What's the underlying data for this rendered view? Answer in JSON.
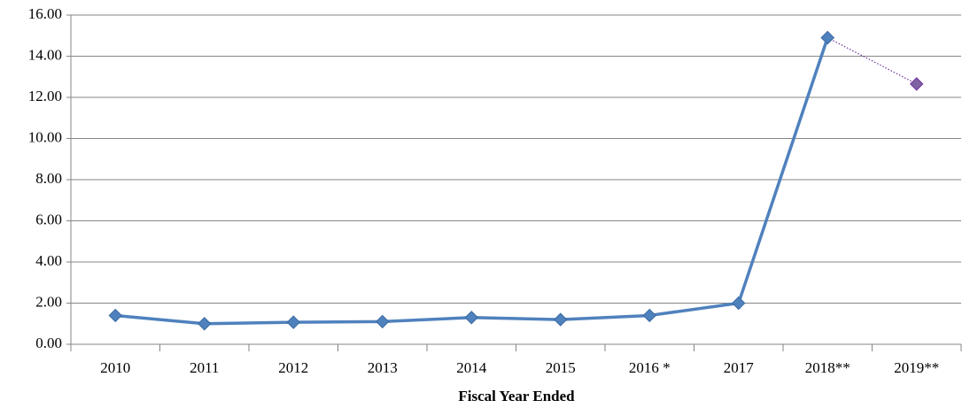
{
  "chart_data": {
    "type": "line",
    "xlabel": "Fiscal Year Ended",
    "categories": [
      "2010",
      "2011",
      "2012",
      "2013",
      "2014",
      "2015",
      "2016 *",
      "2017",
      "2018**",
      "2019**"
    ],
    "series": [
      {
        "color": "#4f81bd",
        "marker_color": "#4f81bd",
        "marker_edge": "#3a6aa3",
        "line_style": "solid",
        "values": [
          1.4,
          1.0,
          1.07,
          1.1,
          1.3,
          1.2,
          1.4,
          2.0,
          14.9,
          null
        ]
      },
      {
        "color": "#7030a0",
        "marker_color": "#8064a2",
        "marker_edge": "#7030a0",
        "line_style": "dotted",
        "values": [
          null,
          null,
          null,
          null,
          null,
          null,
          null,
          null,
          14.9,
          12.65
        ]
      }
    ],
    "ylim": [
      0,
      16
    ],
    "yticks": [
      {
        "value": 0,
        "label": "0.00"
      },
      {
        "value": 2,
        "label": "2.00"
      },
      {
        "value": 4,
        "label": "4.00"
      },
      {
        "value": 6,
        "label": "6.00"
      },
      {
        "value": 8,
        "label": "8.00"
      },
      {
        "value": 10,
        "label": "10.00"
      },
      {
        "value": 12,
        "label": "12.00"
      },
      {
        "value": 14,
        "label": "14.00"
      },
      {
        "value": 16,
        "label": "16.00"
      }
    ],
    "grid": true
  }
}
